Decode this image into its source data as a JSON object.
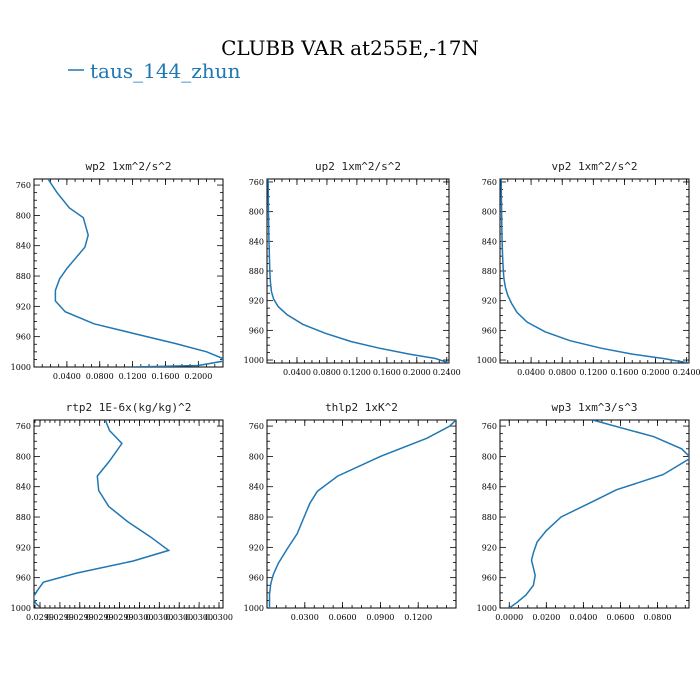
{
  "title": "CLUBB VAR at255E,-17N",
  "legend": {
    "label": "taus_144_zhun",
    "color": "#1f77b4"
  },
  "chart_data": [
    {
      "type": "line",
      "title": "wp2  1xm^2/s^2",
      "xlim": [
        0,
        0.23
      ],
      "ylim": [
        1000,
        752
      ],
      "xticks": [
        "0.0400",
        "0.0800",
        "0.1200",
        "0.1600",
        "0.2000"
      ],
      "yticks": [
        "760",
        "800",
        "840",
        "880",
        "920",
        "960",
        "1000"
      ],
      "series": [
        {
          "x": [
            0.017,
            0.028,
            0.043,
            0.06,
            0.066,
            0.062,
            0.051,
            0.04,
            0.031,
            0.026,
            0.026,
            0.038,
            0.073,
            0.122,
            0.172,
            0.21,
            0.228,
            0.232,
            0.2,
            0.12
          ],
          "y": [
            752,
            770,
            790,
            803,
            826,
            842,
            856,
            870,
            884,
            899,
            913,
            927,
            943,
            956,
            969,
            980,
            988,
            992,
            998,
            1000
          ]
        }
      ]
    },
    {
      "type": "line",
      "title": "up2  1xm^2/s^2",
      "xlim": [
        0,
        0.243
      ],
      "ylim": [
        1004,
        756
      ],
      "xticks": [
        "0.0400",
        "0.0800",
        "0.1200",
        "0.1600",
        "0.2000",
        "0.2400"
      ],
      "yticks": [
        "760",
        "800",
        "840",
        "880",
        "920",
        "960",
        "1000"
      ],
      "series": [
        {
          "x": [
            0.0015,
            0.0018,
            0.002,
            0.0023,
            0.0027,
            0.0032,
            0.0038,
            0.0046,
            0.006,
            0.009,
            0.015,
            0.027,
            0.048,
            0.078,
            0.112,
            0.15,
            0.19,
            0.225,
            0.243
          ],
          "y": [
            756,
            780,
            800,
            820,
            840,
            860,
            880,
            895,
            908,
            918,
            928,
            939,
            952,
            964,
            975,
            984,
            992,
            998,
            1004
          ]
        }
      ]
    },
    {
      "type": "line",
      "title": "vp2  1xm^2/s^2",
      "xlim": [
        0,
        0.243
      ],
      "ylim": [
        1004,
        756
      ],
      "xticks": [
        "0.0400",
        "0.0800",
        "0.1200",
        "0.1600",
        "0.2000",
        "0.2400"
      ],
      "yticks": [
        "760",
        "800",
        "840",
        "880",
        "920",
        "960",
        "1000"
      ],
      "series": [
        {
          "x": [
            0.0015,
            0.0018,
            0.002,
            0.0023,
            0.0027,
            0.0033,
            0.004,
            0.005,
            0.007,
            0.01,
            0.015,
            0.022,
            0.035,
            0.058,
            0.09,
            0.13,
            0.17,
            0.21,
            0.243
          ],
          "y": [
            756,
            780,
            800,
            820,
            840,
            860,
            875,
            890,
            902,
            913,
            924,
            936,
            949,
            962,
            974,
            984,
            992,
            998,
            1004
          ]
        }
      ]
    },
    {
      "type": "line",
      "title": "rtp2  1E-6x(kg/kg)^2",
      "xlim": [
        0.0296,
        0.03
      ],
      "ylim": [
        1000,
        752
      ],
      "xticks": [
        "0.0299",
        "0.0299",
        "0.0299",
        "0.0299",
        "0.0299",
        "0.0300",
        "0.0300",
        "0.0300",
        "0.0300",
        "0.0300"
      ],
      "yticks": [
        "760",
        "800",
        "840",
        "880",
        "920",
        "960",
        "1000"
      ],
      "series": [
        {
          "x": [
            0.029751,
            0.02976,
            0.029786,
            0.02976,
            0.029734,
            0.029737,
            0.029758,
            0.029798,
            0.029846,
            0.029885,
            0.02981,
            0.02969,
            0.02962,
            0.029606,
            0.029598,
            0.029604,
            0.029611
          ],
          "y": [
            752,
            766,
            783,
            806,
            826,
            845,
            866,
            886,
            906,
            924,
            938,
            954,
            966,
            978,
            986,
            994,
            998
          ]
        }
      ]
    },
    {
      "type": "line",
      "title": "thlp2  1xK^2",
      "xlim": [
        0,
        0.15
      ],
      "ylim": [
        1000,
        752
      ],
      "xticks": [
        "0.0300",
        "0.0600",
        "0.0900",
        "0.1200"
      ],
      "yticks": [
        "760",
        "800",
        "840",
        "880",
        "920",
        "960",
        "1000"
      ],
      "series": [
        {
          "x": [
            0.15,
            0.145,
            0.127,
            0.09,
            0.056,
            0.04,
            0.034,
            0.029,
            0.024,
            0.016,
            0.009,
            0.005,
            0.003,
            0.002,
            0.002
          ],
          "y": [
            752,
            760,
            776,
            800,
            826,
            846,
            862,
            882,
            902,
            922,
            941,
            956,
            968,
            982,
            1000
          ]
        }
      ]
    },
    {
      "type": "line",
      "title": "wp3  1xm^3/s^3",
      "xlim": [
        -0.005,
        0.097
      ],
      "ylim": [
        1000,
        752
      ],
      "xticks": [
        "0.0000",
        "0.0200",
        "0.0400",
        "0.0600",
        "0.0800"
      ],
      "yticks": [
        "760",
        "800",
        "840",
        "880",
        "920",
        "960",
        "1000"
      ],
      "series": [
        {
          "x": [
            0.045,
            0.078,
            0.093,
            0.098,
            0.083,
            0.058,
            0.043,
            0.028,
            0.02,
            0.015,
            0.013,
            0.012,
            0.013,
            0.014,
            0.013,
            0.009,
            0.004,
            0.0
          ],
          "y": [
            752,
            774,
            790,
            802,
            824,
            844,
            862,
            880,
            898,
            913,
            927,
            937,
            947,
            957,
            970,
            983,
            993,
            1000
          ]
        }
      ]
    }
  ]
}
